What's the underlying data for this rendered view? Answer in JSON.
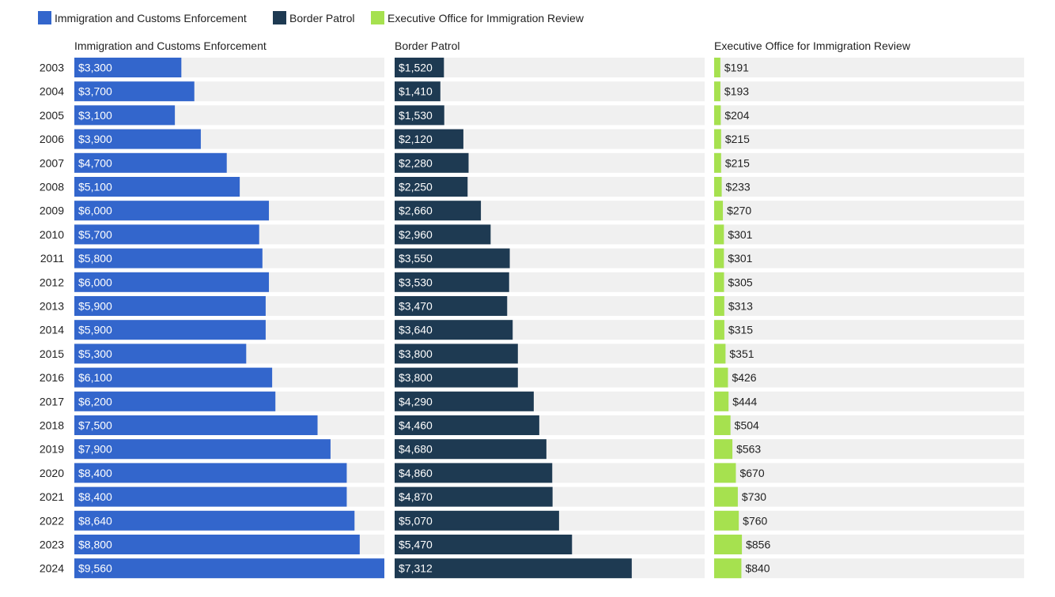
{
  "chart_data": {
    "type": "bar",
    "orientation": "horizontal",
    "layout": "small-multiples",
    "title": "",
    "categories": [
      "2003",
      "2004",
      "2005",
      "2006",
      "2007",
      "2008",
      "2009",
      "2010",
      "2011",
      "2012",
      "2013",
      "2014",
      "2015",
      "2016",
      "2017",
      "2018",
      "2019",
      "2020",
      "2021",
      "2022",
      "2023",
      "2024"
    ],
    "series": [
      {
        "name": "Immigration and Customs Enforcement",
        "color": "#3366cc",
        "xmax": 9560,
        "values": [
          3300,
          3700,
          3100,
          3900,
          4700,
          5100,
          6000,
          5700,
          5800,
          6000,
          5900,
          5900,
          5300,
          6100,
          6200,
          7500,
          7900,
          8400,
          8400,
          8640,
          8800,
          9560
        ],
        "labels": [
          "$3,300",
          "$3,700",
          "$3,100",
          "$3,900",
          "$4,700",
          "$5,100",
          "$6,000",
          "$5,700",
          "$5,800",
          "$6,000",
          "$5,900",
          "$5,900",
          "$5,300",
          "$6,100",
          "$6,200",
          "$7,500",
          "$7,900",
          "$8,400",
          "$8,400",
          "$8,640",
          "$8,800",
          "$9,560"
        ]
      },
      {
        "name": "Border Patrol",
        "color": "#1e3a52",
        "xmax": 9560,
        "values": [
          1520,
          1410,
          1530,
          2120,
          2280,
          2250,
          2660,
          2960,
          3550,
          3530,
          3470,
          3640,
          3800,
          3800,
          4290,
          4460,
          4680,
          4860,
          4870,
          5070,
          5470,
          7312
        ],
        "labels": [
          "$1,520",
          "$1,410",
          "$1,530",
          "$2,120",
          "$2,280",
          "$2,250",
          "$2,660",
          "$2,960",
          "$3,550",
          "$3,530",
          "$3,470",
          "$3,640",
          "$3,800",
          "$3,800",
          "$4,290",
          "$4,460",
          "$4,680",
          "$4,860",
          "$4,870",
          "$5,070",
          "$5,470",
          "$7,312"
        ]
      },
      {
        "name": "Executive Office for Immigration Review",
        "color": "#a6e14f",
        "xmax": 9560,
        "values": [
          191,
          193,
          204,
          215,
          215,
          233,
          270,
          301,
          301,
          305,
          313,
          315,
          351,
          426,
          444,
          504,
          563,
          670,
          730,
          760,
          856,
          840
        ],
        "labels": [
          "$191",
          "$193",
          "$204",
          "$215",
          "$215",
          "$233",
          "$270",
          "$301",
          "$301",
          "$305",
          "$313",
          "$315",
          "$351",
          "$426",
          "$444",
          "$504",
          "$563",
          "$670",
          "$730",
          "$760",
          "$856",
          "$840"
        ]
      }
    ],
    "legend": "top-left",
    "track_color": "#f0f0f0"
  }
}
